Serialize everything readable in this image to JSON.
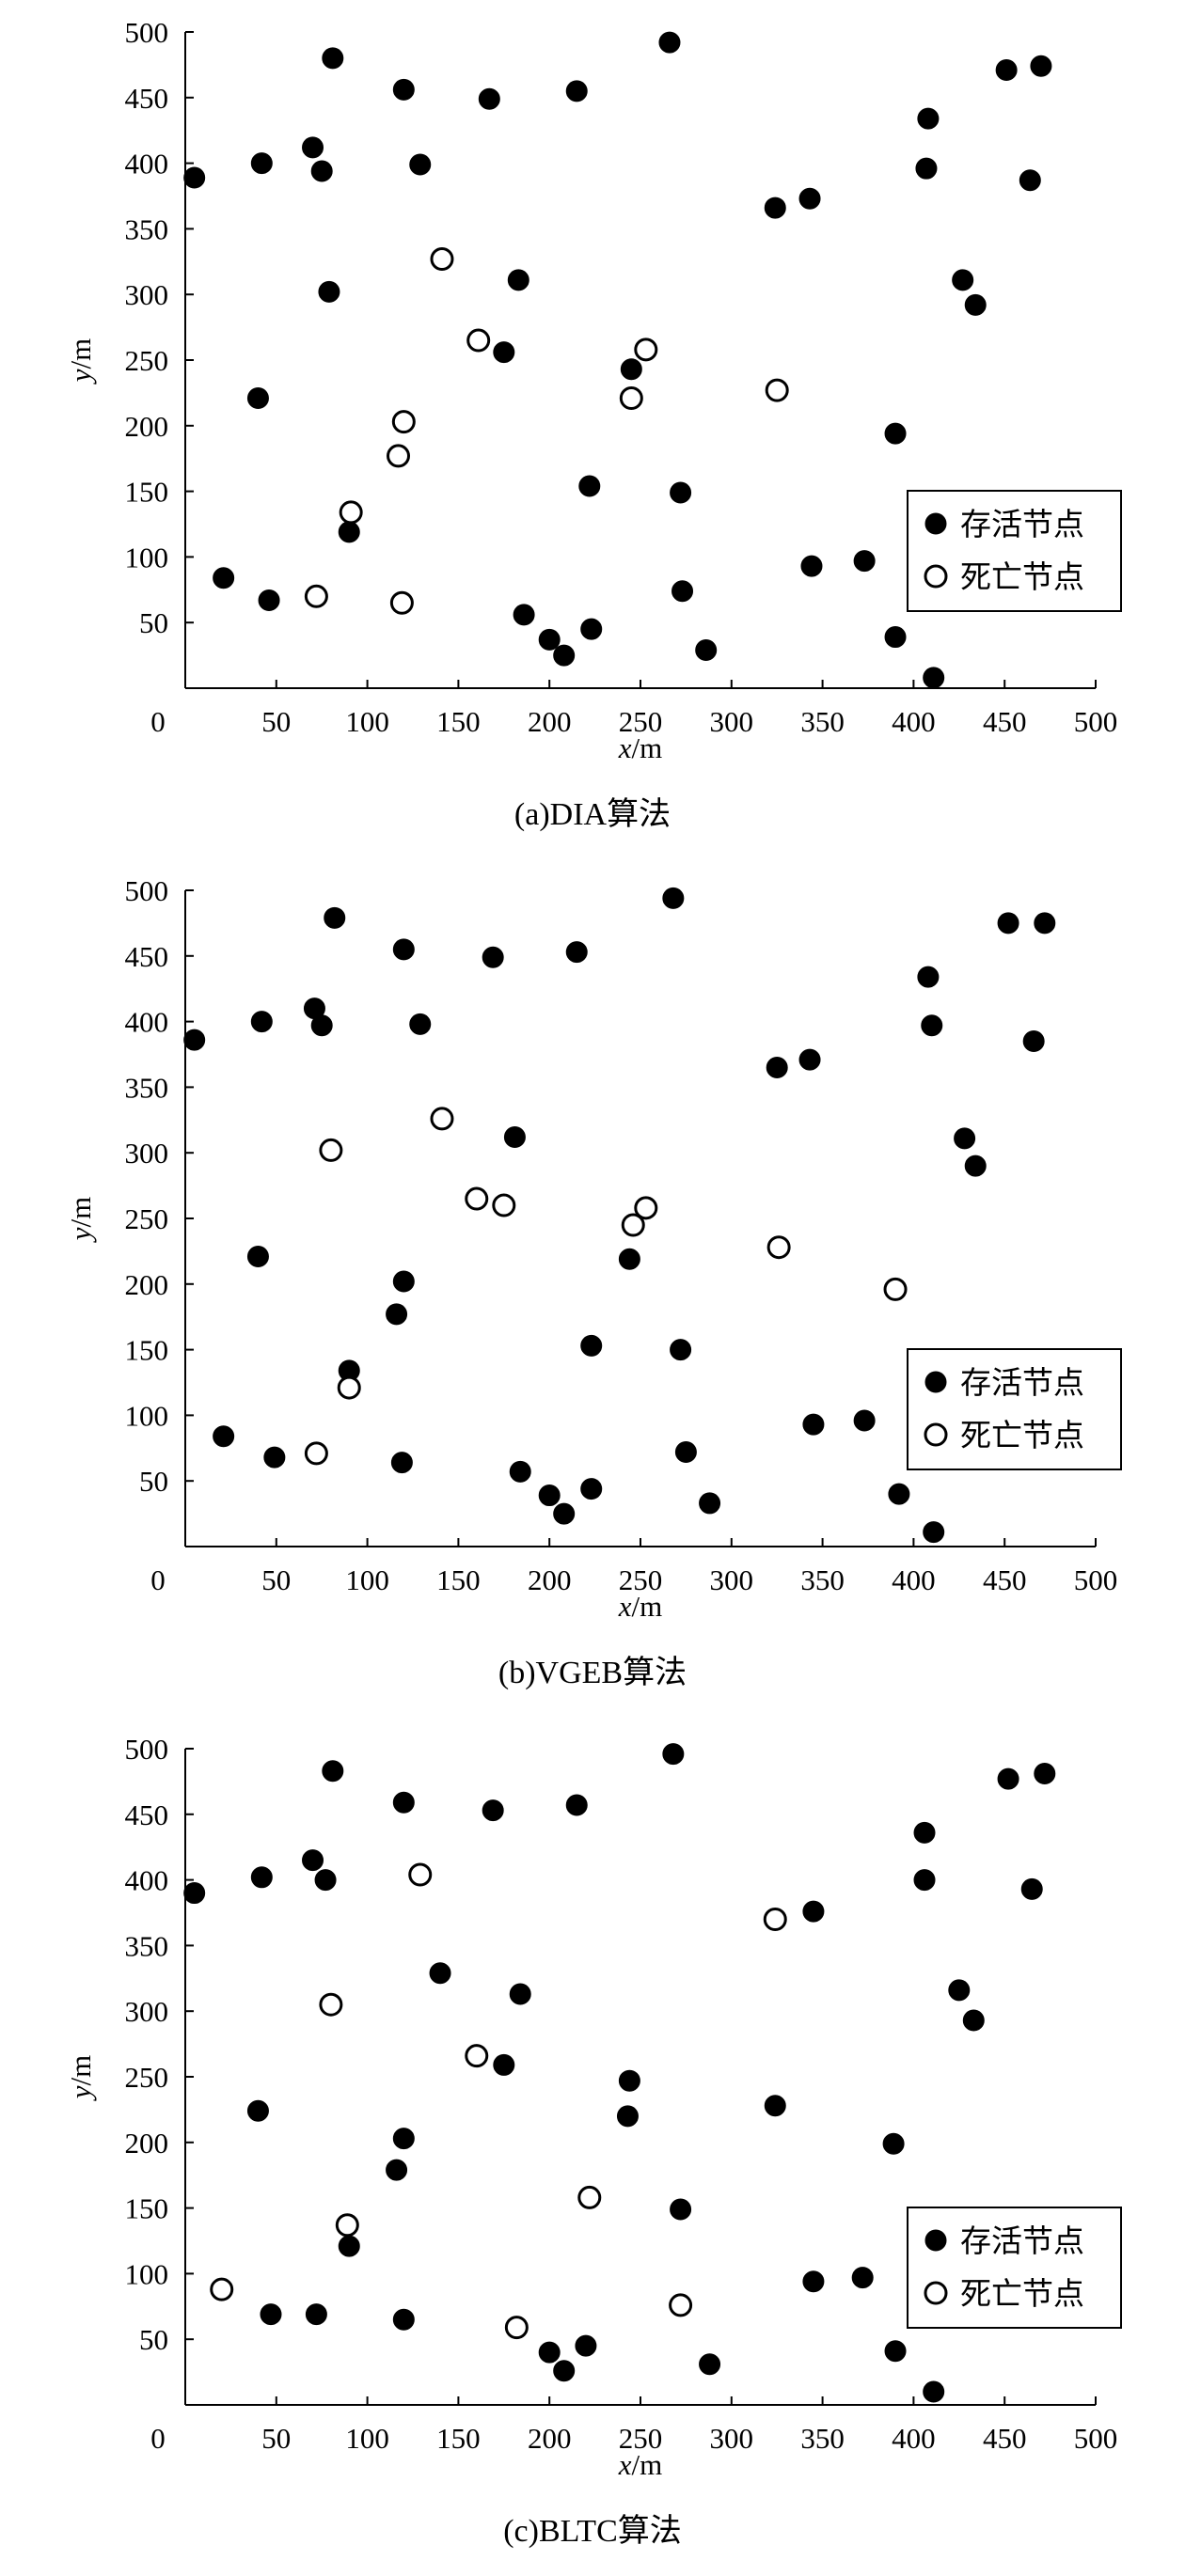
{
  "chart_data": [
    {
      "type": "scatter",
      "title": "(a)DIA算法",
      "xlabel": "x/m",
      "ylabel": "y/m",
      "xlim": [
        0,
        500
      ],
      "ylim": [
        0,
        500
      ],
      "xticks": [
        0,
        50,
        100,
        150,
        200,
        250,
        300,
        350,
        400,
        450,
        500
      ],
      "yticks": [
        50,
        100,
        150,
        200,
        250,
        300,
        350,
        400,
        450,
        500
      ],
      "grid": false,
      "legend": "bottom-right",
      "series": [
        {
          "name": "存活节点",
          "marker": "filled-circle",
          "color": "#000000",
          "points": [
            [
              5,
              389
            ],
            [
              21,
              84
            ],
            [
              40,
              221
            ],
            [
              42,
              400
            ],
            [
              46,
              67
            ],
            [
              70,
              412
            ],
            [
              75,
              394
            ],
            [
              79,
              302
            ],
            [
              81,
              480
            ],
            [
              90,
              119
            ],
            [
              120,
              456
            ],
            [
              129,
              399
            ],
            [
              167,
              449
            ],
            [
              175,
              256
            ],
            [
              183,
              311
            ],
            [
              186,
              56
            ],
            [
              200,
              37
            ],
            [
              208,
              25
            ],
            [
              215,
              455
            ],
            [
              222,
              154
            ],
            [
              223,
              45
            ],
            [
              245,
              243
            ],
            [
              266,
              492
            ],
            [
              272,
              149
            ],
            [
              273,
              74
            ],
            [
              286,
              29
            ],
            [
              324,
              366
            ],
            [
              343,
              373
            ],
            [
              344,
              93
            ],
            [
              373,
              97
            ],
            [
              390,
              194
            ],
            [
              390,
              39
            ],
            [
              407,
              396
            ],
            [
              408,
              434
            ],
            [
              411,
              8
            ],
            [
              427,
              311
            ],
            [
              434,
              292
            ],
            [
              451,
              471
            ],
            [
              464,
              387
            ],
            [
              470,
              474
            ]
          ]
        },
        {
          "name": "死亡节点",
          "marker": "open-circle",
          "color": "#000000",
          "points": [
            [
              72,
              70
            ],
            [
              91,
              134
            ],
            [
              117,
              177
            ],
            [
              119,
              65
            ],
            [
              120,
              203
            ],
            [
              141,
              327
            ],
            [
              161,
              265
            ],
            [
              245,
              221
            ],
            [
              253,
              258
            ],
            [
              325,
              227
            ]
          ]
        }
      ]
    },
    {
      "type": "scatter",
      "title": "(b)VGEB算法",
      "xlabel": "x/m",
      "ylabel": "y/m",
      "xlim": [
        0,
        500
      ],
      "ylim": [
        0,
        500
      ],
      "xticks": [
        0,
        50,
        100,
        150,
        200,
        250,
        300,
        350,
        400,
        450,
        500
      ],
      "yticks": [
        50,
        100,
        150,
        200,
        250,
        300,
        350,
        400,
        450,
        500
      ],
      "grid": false,
      "legend": "bottom-right",
      "series": [
        {
          "name": "存活节点",
          "marker": "filled-circle",
          "color": "#000000",
          "points": [
            [
              5,
              386
            ],
            [
              21,
              84
            ],
            [
              40,
              221
            ],
            [
              42,
              400
            ],
            [
              49,
              68
            ],
            [
              71,
              410
            ],
            [
              75,
              397
            ],
            [
              82,
              479
            ],
            [
              90,
              134
            ],
            [
              116,
              177
            ],
            [
              119,
              64
            ],
            [
              120,
              202
            ],
            [
              120,
              455
            ],
            [
              129,
              398
            ],
            [
              169,
              449
            ],
            [
              181,
              312
            ],
            [
              184,
              57
            ],
            [
              200,
              39
            ],
            [
              208,
              25
            ],
            [
              215,
              453
            ],
            [
              223,
              153
            ],
            [
              223,
              44
            ],
            [
              244,
              219
            ],
            [
              268,
              494
            ],
            [
              272,
              150
            ],
            [
              275,
              72
            ],
            [
              288,
              33
            ],
            [
              325,
              365
            ],
            [
              343,
              371
            ],
            [
              345,
              93
            ],
            [
              373,
              96
            ],
            [
              392,
              40
            ],
            [
              408,
              434
            ],
            [
              410,
              397
            ],
            [
              411,
              11
            ],
            [
              428,
              311
            ],
            [
              434,
              290
            ],
            [
              452,
              475
            ],
            [
              466,
              385
            ],
            [
              472,
              475
            ]
          ]
        },
        {
          "name": "死亡节点",
          "marker": "open-circle",
          "color": "#000000",
          "points": [
            [
              72,
              71
            ],
            [
              80,
              302
            ],
            [
              90,
              121
            ],
            [
              141,
              326
            ],
            [
              160,
              265
            ],
            [
              175,
              260
            ],
            [
              246,
              245
            ],
            [
              253,
              258
            ],
            [
              326,
              228
            ],
            [
              390,
              196
            ]
          ]
        }
      ]
    },
    {
      "type": "scatter",
      "title": "(c)BLTC算法",
      "xlabel": "x/m",
      "ylabel": "y/m",
      "xlim": [
        0,
        500
      ],
      "ylim": [
        0,
        500
      ],
      "xticks": [
        0,
        50,
        100,
        150,
        200,
        250,
        300,
        350,
        400,
        450,
        500
      ],
      "yticks": [
        50,
        100,
        150,
        200,
        250,
        300,
        350,
        400,
        450,
        500
      ],
      "grid": false,
      "legend": "bottom-right",
      "series": [
        {
          "name": "存活节点",
          "marker": "filled-circle",
          "color": "#000000",
          "points": [
            [
              5,
              390
            ],
            [
              40,
              224
            ],
            [
              42,
              402
            ],
            [
              47,
              69
            ],
            [
              70,
              415
            ],
            [
              72,
              69
            ],
            [
              77,
              400
            ],
            [
              81,
              483
            ],
            [
              90,
              121
            ],
            [
              116,
              179
            ],
            [
              120,
              203
            ],
            [
              120,
              65
            ],
            [
              120,
              459
            ],
            [
              140,
              329
            ],
            [
              169,
              453
            ],
            [
              175,
              259
            ],
            [
              184,
              313
            ],
            [
              200,
              40
            ],
            [
              208,
              26
            ],
            [
              215,
              457
            ],
            [
              220,
              45
            ],
            [
              243,
              220
            ],
            [
              244,
              247
            ],
            [
              268,
              496
            ],
            [
              272,
              149
            ],
            [
              288,
              31
            ],
            [
              324,
              228
            ],
            [
              345,
              376
            ],
            [
              345,
              94
            ],
            [
              372,
              97
            ],
            [
              389,
              199
            ],
            [
              390,
              41
            ],
            [
              406,
              436
            ],
            [
              406,
              400
            ],
            [
              411,
              10
            ],
            [
              425,
              316
            ],
            [
              433,
              293
            ],
            [
              452,
              477
            ],
            [
              465,
              393
            ],
            [
              472,
              481
            ]
          ]
        },
        {
          "name": "死亡节点",
          "marker": "open-circle",
          "color": "#000000",
          "points": [
            [
              20,
              88
            ],
            [
              80,
              305
            ],
            [
              89,
              137
            ],
            [
              129,
              404
            ],
            [
              160,
              266
            ],
            [
              182,
              59
            ],
            [
              222,
              158
            ],
            [
              272,
              76
            ],
            [
              324,
              370
            ]
          ]
        }
      ]
    }
  ]
}
